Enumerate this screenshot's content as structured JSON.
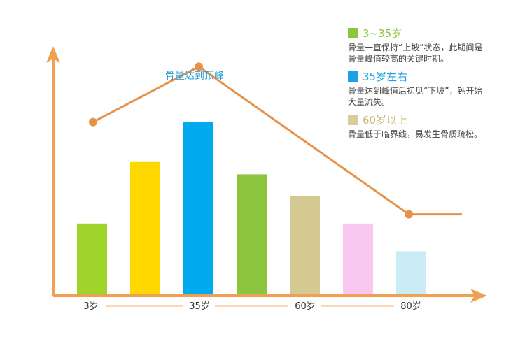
{
  "chart_data": {
    "type": "bar",
    "categories": [
      "",
      "",
      "",
      "",
      "",
      "",
      ""
    ],
    "values": [
      23,
      43,
      56,
      39,
      32,
      23,
      14
    ],
    "bar_colors": [
      "#9fd42b",
      "#ffd800",
      "#00aaef",
      "#8cc63f",
      "#d4c990",
      "#f8c8f0",
      "#c9ecf5"
    ],
    "x_tick_labels": [
      "3岁",
      "35岁",
      "60岁",
      "80岁"
    ],
    "trend_line": {
      "points": [
        56,
        74,
        26,
        26
      ]
    },
    "annotation": "骨量达到顶峰",
    "ylim": [
      0,
      90
    ]
  },
  "legend": [
    {
      "label": "3~35岁",
      "color": "#8cc63f",
      "label_color": "#8cc63f",
      "desc": [
        "骨量一直保持“上坡”状态，此期间是",
        "骨量峰值较高的关键时期。"
      ]
    },
    {
      "label": "35岁左右",
      "color": "#1ea0e8",
      "label_color": "#1ea0e8",
      "desc": [
        "骨量达到峰值后初见“下坡”，钙开始",
        "大量流失。"
      ]
    },
    {
      "label": "60岁以上",
      "color": "#d8cd9a",
      "label_color": "#c8b87a",
      "desc": [
        "骨量低于临界线，易发生骨质疏松。"
      ]
    }
  ],
  "colors": {
    "axis": "#f0a050",
    "trend": "#e8914a",
    "peak_text": "#2a9fd8"
  }
}
